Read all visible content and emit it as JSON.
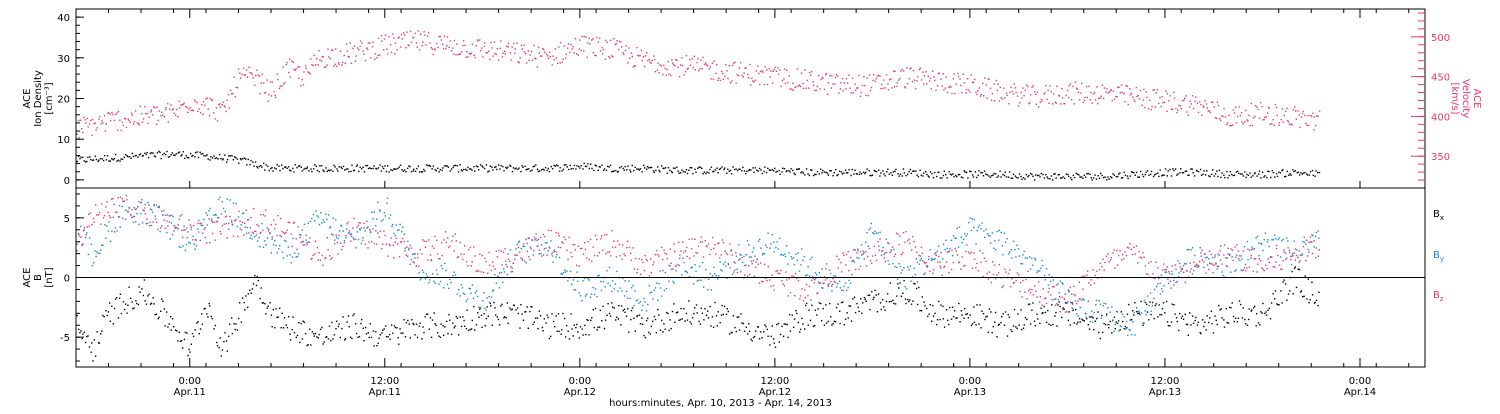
{
  "colors": {
    "density": "#000000",
    "velocity": "#e8386a",
    "bx": "#000000",
    "by": "#1188dd",
    "bz": "#e8386a",
    "axis": "#000000",
    "background": "#ffffff"
  },
  "x_axis": {
    "label": "hours:minutes, Apr. 10, 2013 - Apr. 14, 2013",
    "ticks": [
      {
        "hours": 8.0,
        "time": "0:00",
        "date": "Apr.11"
      },
      {
        "hours": 20.0,
        "time": "12:00",
        "date": "Apr.11"
      },
      {
        "hours": 32.0,
        "time": "0:00",
        "date": "Apr.12"
      },
      {
        "hours": 44.0,
        "time": "12:00",
        "date": "Apr.12"
      },
      {
        "hours": 56.0,
        "time": "0:00",
        "date": "Apr.13"
      },
      {
        "hours": 68.0,
        "time": "12:00",
        "date": "Apr.13"
      },
      {
        "hours": 80.0,
        "time": "0:00",
        "date": "Apr.14"
      }
    ]
  },
  "chart_data": [
    {
      "type": "scatter",
      "panel": "top",
      "ylabel_left": [
        "ACE",
        "Ion Density",
        "[cm⁻³]"
      ],
      "ylabel_right": [
        "ACE",
        "Velocity",
        "[km/s]"
      ],
      "xlim": [
        1.0,
        84.0
      ],
      "ylim_left": [
        -2,
        42
      ],
      "yticks_left": [
        0,
        10,
        20,
        30,
        40
      ],
      "ylim_right": [
        310,
        535
      ],
      "yticks_right": [
        350,
        400,
        450,
        500
      ],
      "series": [
        {
          "axis": "left",
          "x": [
            1,
            3,
            5,
            7,
            9,
            10,
            11,
            12,
            13,
            14,
            15,
            16,
            18,
            20,
            22,
            24,
            26,
            28,
            30,
            32,
            34,
            36,
            38,
            40,
            42,
            44,
            46,
            48,
            50,
            52,
            54,
            56,
            58,
            60,
            62,
            64,
            66,
            68,
            70,
            72,
            74,
            76,
            77.5
          ],
          "y": [
            5,
            5.5,
            6,
            6.5,
            6,
            5.5,
            5,
            4,
            3,
            3,
            3,
            3,
            3,
            3,
            3,
            3,
            3,
            3,
            3,
            3.5,
            3,
            3,
            2.5,
            2.5,
            2.5,
            2.5,
            2,
            2,
            2,
            2,
            1.5,
            1.5,
            1.5,
            1,
            1,
            1,
            1.5,
            2,
            2,
            1.5,
            1.5,
            2,
            1.5
          ]
        },
        {
          "axis": "right",
          "x": [
            1,
            3,
            5,
            7,
            8,
            9,
            10,
            11,
            12,
            13,
            14,
            15,
            16,
            18,
            20,
            22,
            24,
            26,
            28,
            30,
            32,
            34,
            36,
            38,
            40,
            42,
            44,
            46,
            48,
            50,
            52,
            54,
            56,
            58,
            60,
            62,
            64,
            66,
            68,
            70,
            72,
            74,
            76,
            77.5
          ],
          "y": [
            385,
            395,
            400,
            405,
            420,
            415,
            405,
            450,
            448,
            430,
            460,
            450,
            475,
            480,
            490,
            495,
            490,
            485,
            480,
            475,
            490,
            485,
            470,
            465,
            460,
            455,
            450,
            445,
            440,
            440,
            450,
            445,
            440,
            430,
            425,
            430,
            430,
            425,
            420,
            415,
            400,
            405,
            400,
            395
          ]
        }
      ]
    },
    {
      "type": "scatter",
      "panel": "bottom",
      "ylabel": [
        "ACE",
        "B",
        "[nT]"
      ],
      "xlim": [
        1.0,
        84.0
      ],
      "ylim": [
        -7.5,
        7.5
      ],
      "yticks": [
        -5,
        0,
        5
      ],
      "series": [
        {
          "name": "Bx",
          "x": [
            1,
            2,
            3,
            5,
            7,
            8,
            9,
            10,
            11,
            12,
            13,
            14,
            16,
            18,
            20,
            22,
            24,
            26,
            28,
            30,
            32,
            34,
            36,
            38,
            40,
            42,
            44,
            46,
            48,
            50,
            52,
            54,
            56,
            58,
            60,
            62,
            64,
            66,
            68,
            70,
            72,
            74,
            76,
            77.5
          ],
          "y": [
            -4,
            -6,
            -3,
            -1,
            -4,
            -6,
            -2,
            -6,
            -3,
            0,
            -3,
            -4,
            -5,
            -4,
            -5,
            -4,
            -4,
            -3,
            -3,
            -4,
            -4,
            -3,
            -4,
            -3,
            -3,
            -4,
            -5,
            -3,
            -3,
            -2,
            -1,
            -3,
            -3,
            -4,
            -3,
            -3,
            -4,
            -3,
            -3,
            -4,
            -3,
            -3,
            0,
            -2
          ]
        },
        {
          "name": "By",
          "x": [
            1,
            2,
            4,
            6,
            8,
            10,
            12,
            14,
            16,
            18,
            20,
            22,
            24,
            26,
            28,
            30,
            32,
            34,
            36,
            38,
            40,
            42,
            44,
            46,
            48,
            50,
            52,
            54,
            56,
            58,
            60,
            62,
            64,
            66,
            68,
            70,
            72,
            74,
            76,
            77.5
          ],
          "y": [
            4,
            2,
            6,
            5,
            3,
            6,
            4,
            2,
            5,
            3,
            6,
            1,
            0,
            -2,
            2,
            3,
            -1,
            0,
            -2,
            1,
            0,
            2,
            3,
            1,
            -1,
            4,
            0,
            2,
            4,
            3,
            1,
            -2,
            -3,
            -4,
            0,
            2,
            1,
            3,
            2,
            3
          ]
        },
        {
          "name": "Bz",
          "x": [
            1,
            2,
            4,
            6,
            8,
            10,
            12,
            14,
            16,
            18,
            20,
            22,
            24,
            26,
            28,
            30,
            32,
            34,
            36,
            38,
            40,
            42,
            44,
            46,
            48,
            50,
            52,
            54,
            56,
            58,
            60,
            62,
            64,
            66,
            68,
            70,
            72,
            74,
            76,
            77.5
          ],
          "y": [
            3,
            5,
            6,
            5,
            4,
            4,
            5,
            4,
            2,
            4,
            3,
            2,
            3,
            1,
            2,
            3,
            2,
            3,
            1,
            2,
            3,
            1,
            0,
            -1,
            1,
            2,
            3,
            1,
            2,
            0,
            -1,
            -2,
            1,
            2,
            0,
            1,
            2,
            1,
            2,
            3
          ]
        }
      ]
    }
  ]
}
